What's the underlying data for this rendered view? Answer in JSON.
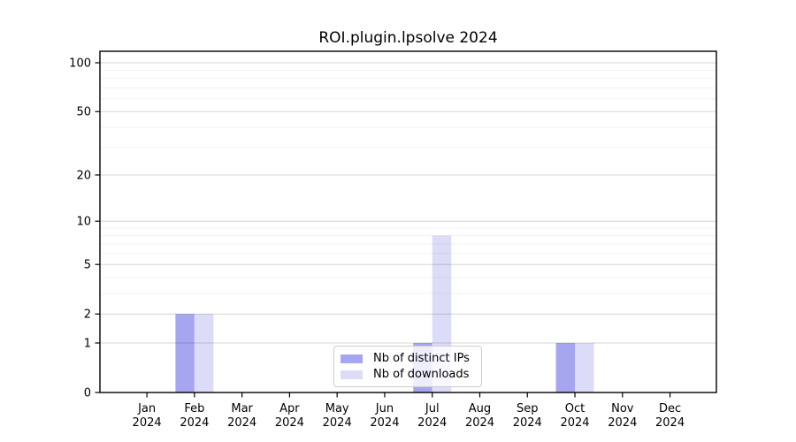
{
  "chart_data": {
    "type": "bar",
    "title": "ROI.plugin.lpsolve 2024",
    "categories": [
      "Jan 2024",
      "Feb 2024",
      "Mar 2024",
      "Apr 2024",
      "May 2024",
      "Jun 2024",
      "Jul 2024",
      "Aug 2024",
      "Sep 2024",
      "Oct 2024",
      "Nov 2024",
      "Dec 2024"
    ],
    "series": [
      {
        "name": "Nb of distinct IPs",
        "color": "#a6a6f0",
        "values": [
          0,
          2,
          0,
          0,
          0,
          0,
          1,
          0,
          0,
          1,
          0,
          0
        ]
      },
      {
        "name": "Nb of downloads",
        "color": "#dcdcf8",
        "values": [
          0,
          2,
          0,
          0,
          0,
          0,
          8,
          0,
          0,
          1,
          0,
          0
        ]
      }
    ],
    "xlabel": "",
    "ylabel": "",
    "yscale": "log1p",
    "ylim": [
      0,
      118
    ],
    "yticks": [
      0,
      1,
      2,
      5,
      10,
      20,
      50,
      100
    ],
    "yticks_minor": [
      3,
      4,
      6,
      7,
      8,
      9,
      30,
      40,
      60,
      70,
      80,
      90
    ],
    "grid": true,
    "legend_position": "lower center",
    "colors": {
      "grid_major": "rgba(0,0,0,0.17)",
      "grid_minor": "rgba(0,0,0,0.055)",
      "axis": "#000000",
      "text": "#000000",
      "legend_border": "#cccccc"
    }
  }
}
